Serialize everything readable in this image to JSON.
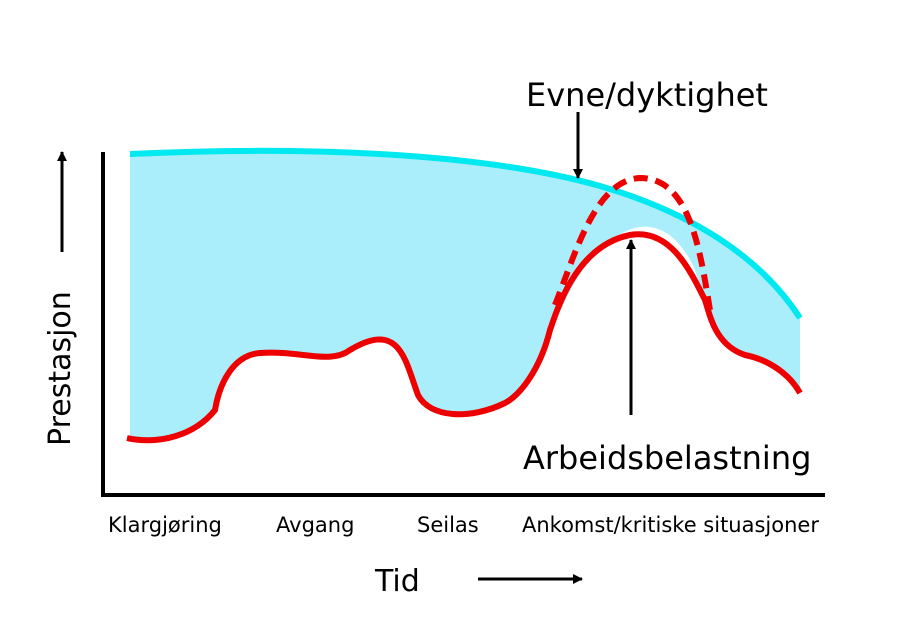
{
  "labels": {
    "capability": "Evne/dyktighet",
    "workload": "Arbeidsbelastning",
    "y_axis": "Prestasjon",
    "x_axis": "Tid"
  },
  "phases": [
    "Klargjøring",
    "Avgang",
    "Seilas",
    "Ankomst/kritiske situasjoner"
  ],
  "colors": {
    "capability_curve": "#00e8f0",
    "capability_fill": "#aaeefc",
    "workload_curve": "#ee0000",
    "axes": "#000000"
  }
}
